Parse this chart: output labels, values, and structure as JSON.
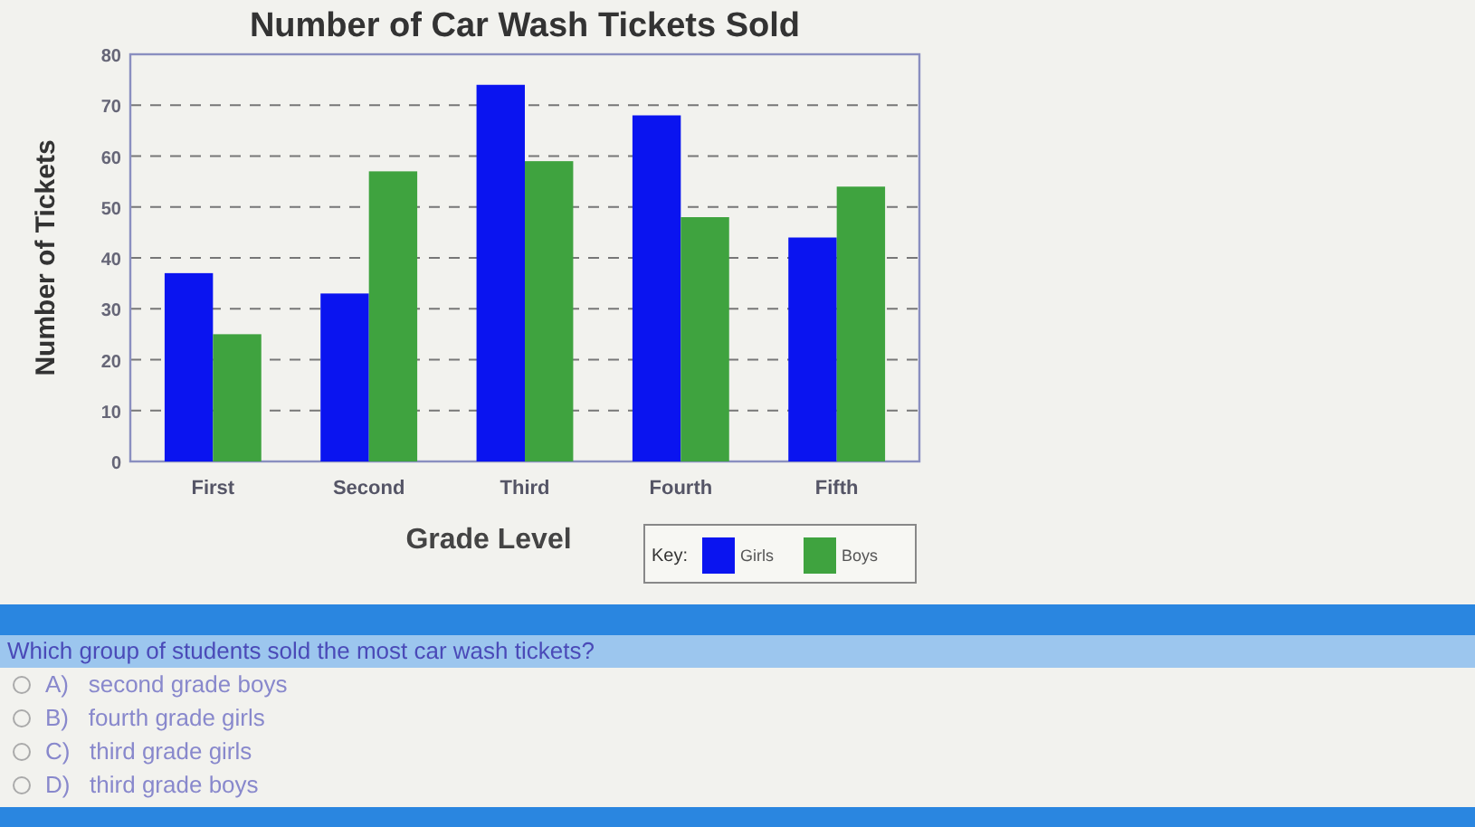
{
  "chart_data": {
    "type": "bar",
    "title": "Number of Car Wash Tickets Sold",
    "xlabel": "Grade Level",
    "ylabel": "Number of Tickets",
    "legend_title": "Key:",
    "categories": [
      "First",
      "Second",
      "Third",
      "Fourth",
      "Fifth"
    ],
    "series": [
      {
        "name": "Girls",
        "color": "#0a14f0",
        "values": [
          37,
          33,
          74,
          68,
          44
        ]
      },
      {
        "name": "Boys",
        "color": "#3fa33f",
        "values": [
          25,
          57,
          59,
          48,
          54
        ]
      }
    ],
    "ylim": [
      0,
      80
    ],
    "yticks": [
      0,
      10,
      20,
      30,
      40,
      50,
      60,
      70,
      80
    ],
    "grid": "y",
    "legend": "bottom right",
    "annotations": [
      "Which group of students sold the most car wash tickets?",
      "A)   second grade boys",
      "B)   fourth grade girls",
      "C)   third grade girls",
      "D)   third grade boys"
    ]
  }
}
